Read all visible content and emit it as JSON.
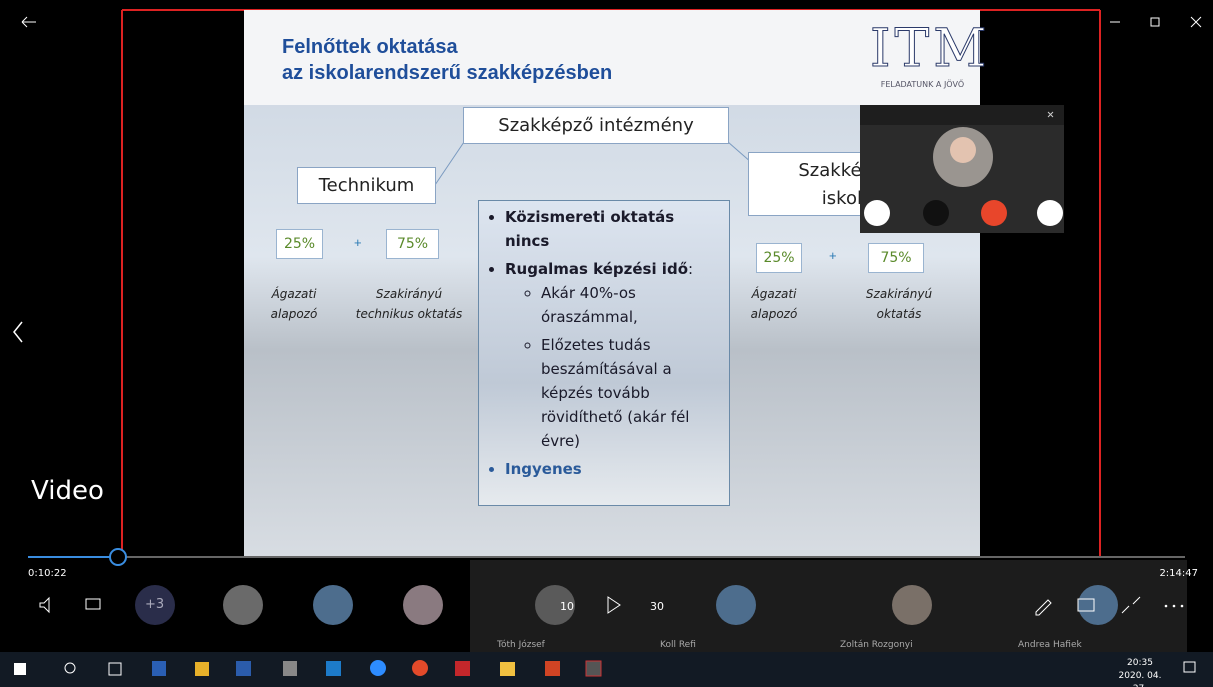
{
  "window": {
    "title": "Video"
  },
  "slide": {
    "title": [
      "Felnőttek oktatása",
      "az iskolarendszerű szakképzésben"
    ],
    "logo": "ITM",
    "logo_tagline": "FELADATUNK A JÖVŐ",
    "root": "Szakképző intézmény",
    "left": {
      "name": "Technikum",
      "shares": [
        "25%",
        "75%"
      ],
      "plus": "+",
      "labels": [
        [
          "Ágazati",
          "alapozó"
        ],
        [
          "Szakirányú",
          "technikus oktatás"
        ]
      ]
    },
    "right": {
      "name": [
        "Szakkép",
        "iskola"
      ],
      "shares": [
        "25%",
        "75%"
      ],
      "plus": "+",
      "labels": [
        [
          "Ágazati",
          "alapozó"
        ],
        [
          "Szakirányú",
          "oktatás"
        ]
      ]
    },
    "center": {
      "bullets": [
        {
          "text": "Közismereti oktatás nincs"
        },
        {
          "text": "Rugalmas képzési idő",
          "suffix": ":",
          "sub": [
            "Akár 40%-os óraszámmal,",
            "Előzetes tudás beszámításával a képzés tovább rövidíthető (akár fél évre)"
          ]
        },
        {
          "text": "Ingyenes"
        }
      ]
    }
  },
  "player": {
    "elapsed": "0:10:22",
    "duration": "2:14:47",
    "skip_back": "10",
    "skip_forward": "30"
  },
  "meeting": {
    "hidden_count": "+3",
    "participants": [
      "Tóth József",
      "Koll Refi",
      "Zoltán Rozgonyi",
      "Andrea Hafiek"
    ]
  },
  "taskbar": {
    "time": "20:35",
    "date": "2020. 04. 27."
  }
}
